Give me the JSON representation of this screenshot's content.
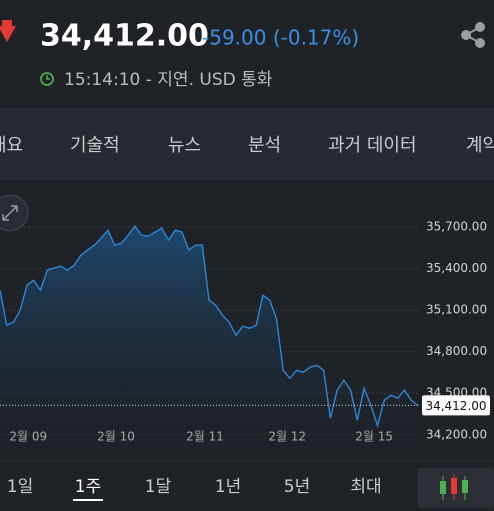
{
  "header": {
    "price": "34,412.00",
    "change": "-59.00 (-0.17%)",
    "time": "15:14:10 - 지연. USD 통화"
  },
  "tabs": [
    "개요",
    "기술적",
    "뉴스",
    "분석",
    "과거 데이터",
    "계약"
  ],
  "chart_data": {
    "type": "line",
    "color": "#2f86d6",
    "values": [
      35245,
      34991,
      35013,
      35100,
      35281,
      35317,
      35245,
      35389,
      35404,
      35418,
      35389,
      35425,
      35498,
      35534,
      35570,
      35620,
      35678,
      35570,
      35584,
      35642,
      35707,
      35642,
      35635,
      35664,
      35693,
      35606,
      35678,
      35664,
      35534,
      35570,
      35570,
      35172,
      35136,
      35064,
      35013,
      34919,
      34984,
      34970,
      34991,
      35208,
      35172,
      35042,
      34666,
      34608,
      34666,
      34652,
      34688,
      34702,
      34666,
      34319,
      34521,
      34594,
      34521,
      34305,
      34536,
      34413,
      34268,
      34449,
      34485,
      34464,
      34521,
      34449,
      34412
    ],
    "xlim": [
      0,
      62
    ],
    "ylim": [
      34090,
      35860
    ],
    "yticks": [
      {
        "value": 35700,
        "label": "35,700.00"
      },
      {
        "value": 35400,
        "label": "35,400.00"
      },
      {
        "value": 35100,
        "label": "35,100.00"
      },
      {
        "value": 34800,
        "label": "34,800.00"
      },
      {
        "value": 34500,
        "label": "34,500.00"
      },
      {
        "value": 34200,
        "label": "34,200.00"
      }
    ],
    "xticks": [
      {
        "value": 4.2,
        "label": "2월 09"
      },
      {
        "value": 17.2,
        "label": "2월 10"
      },
      {
        "value": 30.4,
        "label": "2월 11"
      },
      {
        "value": 42.6,
        "label": "2월 12"
      },
      {
        "value": 55.5,
        "label": "2월 15"
      }
    ],
    "last_value": {
      "value": 34412,
      "label": "34,412.00"
    }
  },
  "ranges": [
    "1일",
    "1주",
    "1달",
    "1년",
    "5년",
    "최대"
  ],
  "selected_range": 1
}
